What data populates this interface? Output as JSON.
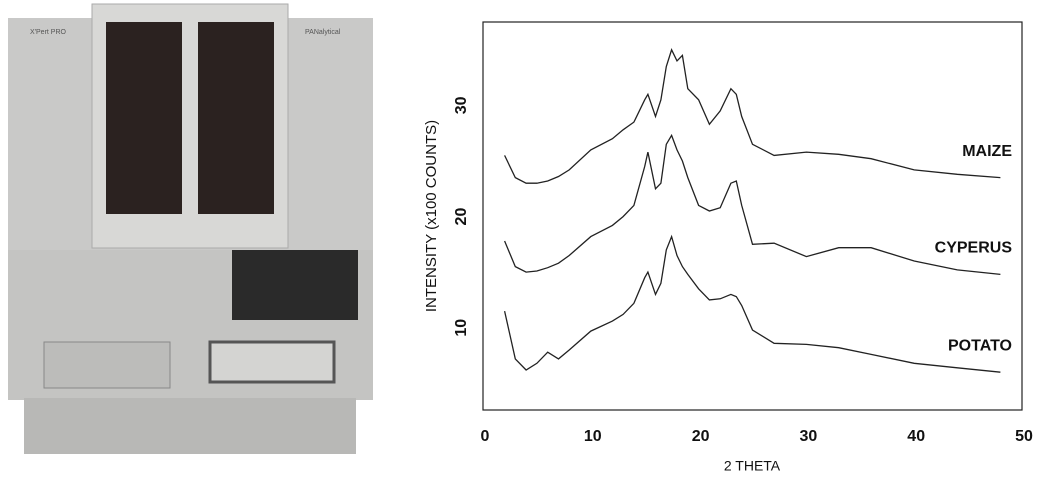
{
  "photo": {
    "labels": [
      "X'Pert PRO",
      "PANalytical"
    ]
  },
  "chart_data": {
    "type": "line",
    "xlabel": "2 THETA",
    "ylabel": "INTENSITY (x100 COUNTS)",
    "x": [
      2,
      3,
      4,
      5,
      6,
      7,
      8,
      10,
      12,
      13,
      14,
      15,
      15.3,
      16,
      16.5,
      17,
      17.5,
      18,
      18.5,
      19,
      20,
      21,
      22,
      23,
      23.5,
      24,
      25,
      27,
      30,
      33,
      36,
      40,
      44,
      48
    ],
    "series": [
      {
        "name": "MAIZE",
        "color": "#222222",
        "values": [
          25.5,
          23.5,
          23,
          23,
          23.2,
          23.6,
          24.2,
          26,
          27,
          27.8,
          28.5,
          30.5,
          31,
          29,
          30.5,
          33.5,
          35,
          34,
          34.5,
          31.5,
          30.5,
          28.3,
          29.5,
          31.5,
          31,
          29,
          26.5,
          25.5,
          25.8,
          25.6,
          25.2,
          24.2,
          23.8,
          23.5
        ]
      },
      {
        "name": "CYPERUS",
        "color": "#222222",
        "values": [
          17.8,
          15.5,
          15,
          15.1,
          15.4,
          15.8,
          16.5,
          18.2,
          19.2,
          20,
          21,
          24.5,
          25.8,
          22.5,
          23,
          26.5,
          27.3,
          26,
          25,
          23.5,
          21,
          20.5,
          20.8,
          23,
          23.2,
          21,
          17.5,
          17.6,
          16.4,
          17.2,
          17.2,
          16,
          15.2,
          14.8
        ]
      },
      {
        "name": "POTATO",
        "color": "#222222",
        "values": [
          11.5,
          7.2,
          6.2,
          6.8,
          7.8,
          7.2,
          8,
          9.7,
          10.6,
          11.2,
          12.2,
          14.5,
          15,
          13,
          14,
          17,
          18.2,
          16.5,
          15.5,
          14.8,
          13.5,
          12.5,
          12.6,
          13,
          12.8,
          12,
          9.8,
          8.6,
          8.5,
          8.2,
          7.6,
          6.8,
          6.4,
          6
        ]
      }
    ],
    "xlim": [
      0,
      50
    ],
    "xticks": [
      0,
      10,
      20,
      30,
      40,
      50
    ],
    "ylim": [
      2.6,
      37.5
    ],
    "yticks": [
      10,
      20,
      30
    ]
  }
}
